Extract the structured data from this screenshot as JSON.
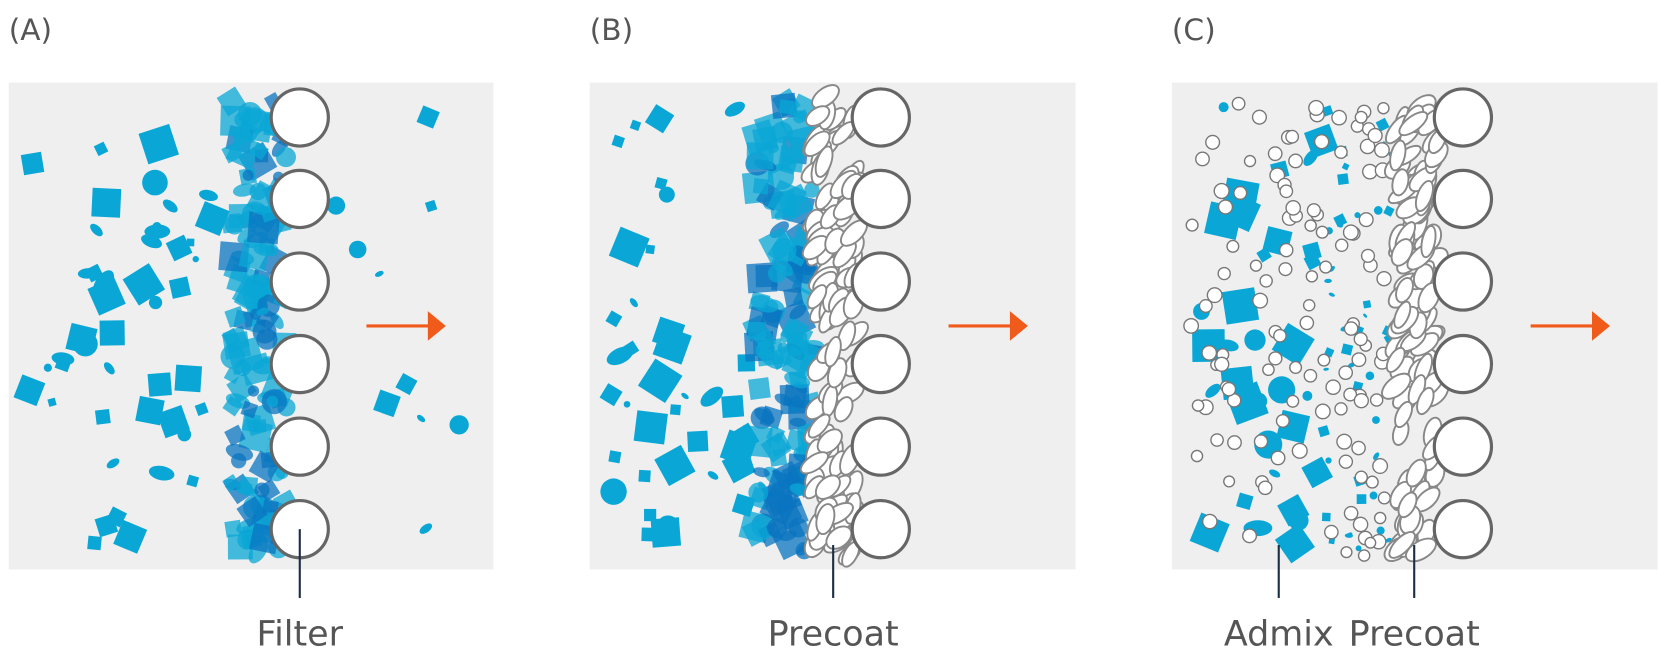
{
  "panels": [
    {
      "label": "(A)",
      "captions": [
        "Filter"
      ]
    },
    {
      "label": "(B)",
      "captions": [
        "Precoat"
      ]
    },
    {
      "label": "(C)",
      "captions": [
        "Admix",
        "Precoat"
      ]
    }
  ]
}
